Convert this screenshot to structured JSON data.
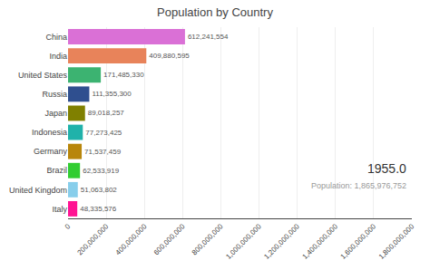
{
  "chart_data": {
    "type": "bar",
    "orientation": "horizontal",
    "title": "Population by Country",
    "categories": [
      "Italy",
      "United Kingdom",
      "Brazil",
      "Germany",
      "Indonesia",
      "Japan",
      "Russia",
      "United States",
      "India",
      "China"
    ],
    "values": [
      48335576,
      51063802,
      62533919,
      71537459,
      77273425,
      89018257,
      111355300,
      171485330,
      409880595,
      612241554
    ],
    "value_labels": [
      "48,335,576",
      "51,063,802",
      "62,533,919",
      "71,537,459",
      "77,273,425",
      "89,018,257",
      "111,355,300",
      "171,485,330",
      "409,880,595",
      "612,241,554"
    ],
    "data_labels": true,
    "colors": [
      "#FF1493",
      "#87CEEB",
      "#32CD32",
      "#B8860B",
      "#20B2AA",
      "#808000",
      "#2F4F8F",
      "#3CB371",
      "#E8835A",
      "#DA70D6"
    ],
    "xlim": [
      0,
      1800000000
    ],
    "xticks": [
      0,
      {
        "value": 200000000,
        "label": "200,000,000"
      },
      {
        "value": 400000000,
        "label": "400,000,000"
      },
      {
        "value": 600000000,
        "label": "600,000,000"
      },
      {
        "value": 800000000,
        "label": "800,000,000"
      },
      {
        "value": 1000000000,
        "label": "1,000,000,000"
      },
      {
        "value": 1200000000,
        "label": "1,200,000,000"
      },
      {
        "value": 1400000000,
        "label": "1,400,000,000"
      },
      {
        "value": 1600000000,
        "label": "1,600,000,000"
      },
      {
        "value": 1800000000,
        "label": "1,800,000,000"
      }
    ],
    "grid": true,
    "annotations": [
      "1955.0",
      "Population: 1,865,976,752"
    ]
  }
}
